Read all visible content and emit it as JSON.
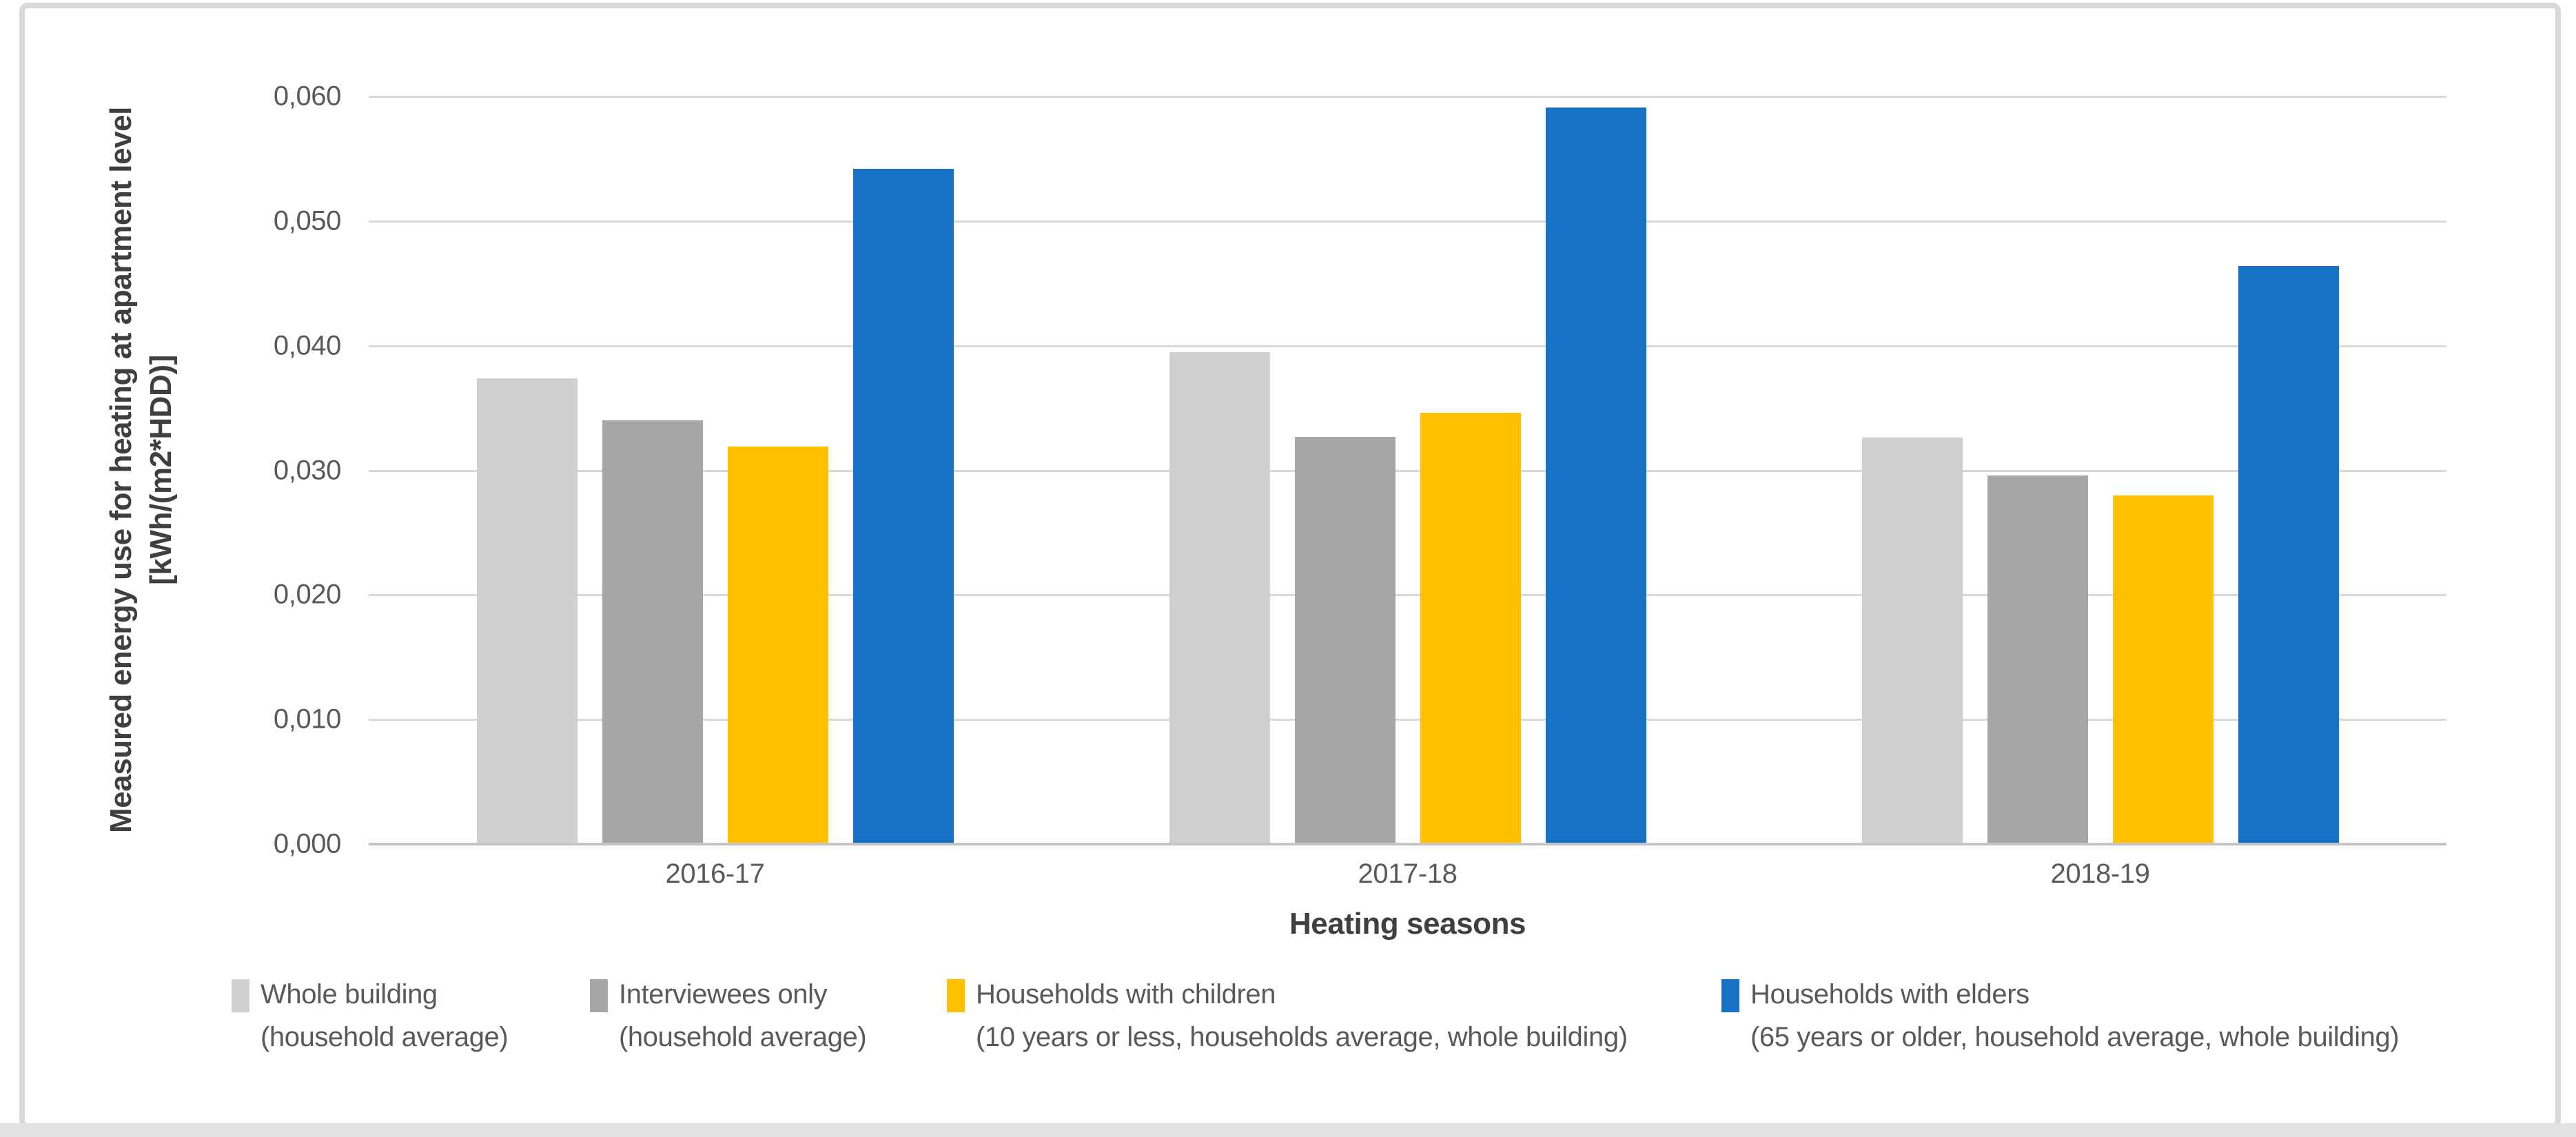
{
  "chart_data": {
    "type": "bar",
    "title": "",
    "categories": [
      "2016-17",
      "2017-18",
      "2018-19"
    ],
    "series": [
      {
        "name": "Whole building (household average)",
        "legend_lines": [
          "Whole building",
          "(household average)"
        ],
        "color": "#d0cece",
        "values": [
          0.0374,
          0.0395,
          0.0326
        ]
      },
      {
        "name": "Interviewees only (household average)",
        "legend_lines": [
          "Interviewees only",
          "(household average)"
        ],
        "color": "#a6a6a6",
        "values": [
          0.034,
          0.0327,
          0.0296
        ]
      },
      {
        "name": "Households with children (10 years or less, households average, whole building)",
        "legend_lines": [
          "Households with children",
          "(10 years or less, households average, whole building)"
        ],
        "color": "#ffc000",
        "values": [
          0.0319,
          0.0346,
          0.028
        ]
      },
      {
        "name": "Households with elders (65 years or older, household average, whole building)",
        "legend_lines": [
          "Households with elders",
          "(65 years or older, household average, whole building)"
        ],
        "color": "#1772c6",
        "values": [
          0.0542,
          0.0591,
          0.0464
        ]
      }
    ],
    "xlabel": "Heating seasons",
    "ylabel_lines": [
      "Measured energy use for heating at apartment level",
      "[kWh/(m2*HDD)]"
    ],
    "ylim": [
      0,
      0.06
    ],
    "yticks": [
      {
        "value": 0.0,
        "label": "0,000"
      },
      {
        "value": 0.01,
        "label": "0,010"
      },
      {
        "value": 0.02,
        "label": "0,020"
      },
      {
        "value": 0.03,
        "label": "0,030"
      },
      {
        "value": 0.04,
        "label": "0,040"
      },
      {
        "value": 0.05,
        "label": "0,050"
      },
      {
        "value": 0.06,
        "label": "0,060"
      }
    ],
    "grid": true,
    "legend_position": "bottom"
  },
  "colors": {
    "gridline": "#d9d9d9",
    "axis_line": "#c6c6c6",
    "tick_text": "#595959",
    "axis_title_text": "#3f3f3f",
    "chart_border": "#d9d9d9",
    "background": "#ffffff",
    "bottom_strip": "#e2e2e2"
  }
}
